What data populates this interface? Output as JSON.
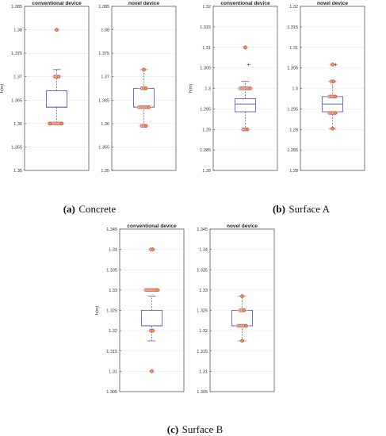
{
  "figures": [
    {
      "caption_tag": "(a)",
      "caption_name": "Concrete"
    },
    {
      "caption_tag": "(b)",
      "caption_name": "Surface A"
    },
    {
      "caption_tag": "(c)",
      "caption_name": "Surface B"
    }
  ],
  "colors": {
    "box": "#4b4bcc",
    "median": "#4b4bcc",
    "whisker": "#555555",
    "point_stroke": "#cc2222",
    "point_fill": "#d9a441",
    "highlight": "#f4c2e6",
    "grid": "#e4e4e4",
    "axis": "#444444"
  },
  "chart_data": [
    {
      "type": "box",
      "title": "conventional device",
      "ylabel": "h(m)",
      "ylim": [
        1.35,
        1.385
      ],
      "yticks": [
        1.35,
        1.355,
        1.36,
        1.365,
        1.37,
        1.375,
        1.38,
        1.385
      ],
      "grid": true,
      "box": {
        "q1": 1.3635,
        "median": 1.3635,
        "q3": 1.367,
        "whisker_low": 1.36,
        "whisker_high": 1.3715
      },
      "points": [
        1.36,
        1.36,
        1.36,
        1.36,
        1.36,
        1.36,
        1.36,
        1.36,
        1.36,
        1.37,
        1.37,
        1.37,
        1.38
      ]
    },
    {
      "type": "box",
      "title": "novel device",
      "ylabel": "",
      "ylim": [
        1.35,
        1.385
      ],
      "yticks": [
        1.35,
        1.355,
        1.36,
        1.365,
        1.37,
        1.375,
        1.38,
        1.385
      ],
      "grid": true,
      "box": {
        "q1": 1.3635,
        "median": 1.3635,
        "q3": 1.3675,
        "whisker_low": 1.3595,
        "whisker_high": 1.3715
      },
      "points": [
        1.3595,
        1.3595,
        1.3595,
        1.3635,
        1.3635,
        1.3635,
        1.3635,
        1.3635,
        1.3635,
        1.3675,
        1.3675,
        1.3675,
        1.3715
      ]
    },
    {
      "type": "box",
      "title": "conventional device",
      "ylabel": "h(m)",
      "ylim": [
        1.28,
        1.32
      ],
      "yticks": [
        1.28,
        1.285,
        1.29,
        1.295,
        1.3,
        1.305,
        1.31,
        1.315,
        1.32
      ],
      "grid": true,
      "box": {
        "q1": 1.2943,
        "median": 1.2962,
        "q3": 1.2975,
        "whisker_low": 1.29,
        "whisker_high": 1.3017
      },
      "points": [
        1.29,
        1.29,
        1.29,
        1.3,
        1.3,
        1.3,
        1.3,
        1.3,
        1.3,
        1.31
      ],
      "outliers": [
        1.3058
      ]
    },
    {
      "type": "box",
      "title": "novel device",
      "ylabel": "",
      "ylim": [
        1.28,
        1.32
      ],
      "yticks": [
        1.28,
        1.285,
        1.29,
        1.295,
        1.3,
        1.305,
        1.31,
        1.315,
        1.32
      ],
      "grid": true,
      "box": {
        "q1": 1.2943,
        "median": 1.2962,
        "q3": 1.298,
        "whisker_low": 1.2902,
        "whisker_high": 1.3017
      },
      "points": [
        1.2902,
        1.294,
        1.294,
        1.294,
        1.294,
        1.298,
        1.298,
        1.298,
        1.298,
        1.3017,
        1.3017,
        1.3058
      ],
      "outliers": [
        1.3058
      ]
    },
    {
      "type": "box",
      "title": "conventional device",
      "ylabel": "h(m)",
      "ylim": [
        1.305,
        1.345
      ],
      "yticks": [
        1.305,
        1.31,
        1.315,
        1.32,
        1.325,
        1.33,
        1.335,
        1.34,
        1.345
      ],
      "grid": true,
      "box": {
        "q1": 1.3212,
        "median": 1.3212,
        "q3": 1.325,
        "whisker_low": 1.3175,
        "whisker_high": 1.3285
      },
      "points": [
        1.31,
        1.32,
        1.32,
        1.33,
        1.33,
        1.33,
        1.33,
        1.33,
        1.33,
        1.33,
        1.34,
        1.34
      ]
    },
    {
      "type": "box",
      "title": "novel device",
      "ylabel": "",
      "ylim": [
        1.305,
        1.345
      ],
      "yticks": [
        1.305,
        1.31,
        1.315,
        1.32,
        1.325,
        1.33,
        1.335,
        1.34,
        1.345
      ],
      "grid": true,
      "box": {
        "q1": 1.3212,
        "median": 1.3212,
        "q3": 1.325,
        "whisker_low": 1.3175,
        "whisker_high": 1.3285
      },
      "points": [
        1.3175,
        1.3212,
        1.3212,
        1.3212,
        1.3212,
        1.3212,
        1.325,
        1.325,
        1.325,
        1.3285
      ]
    }
  ]
}
